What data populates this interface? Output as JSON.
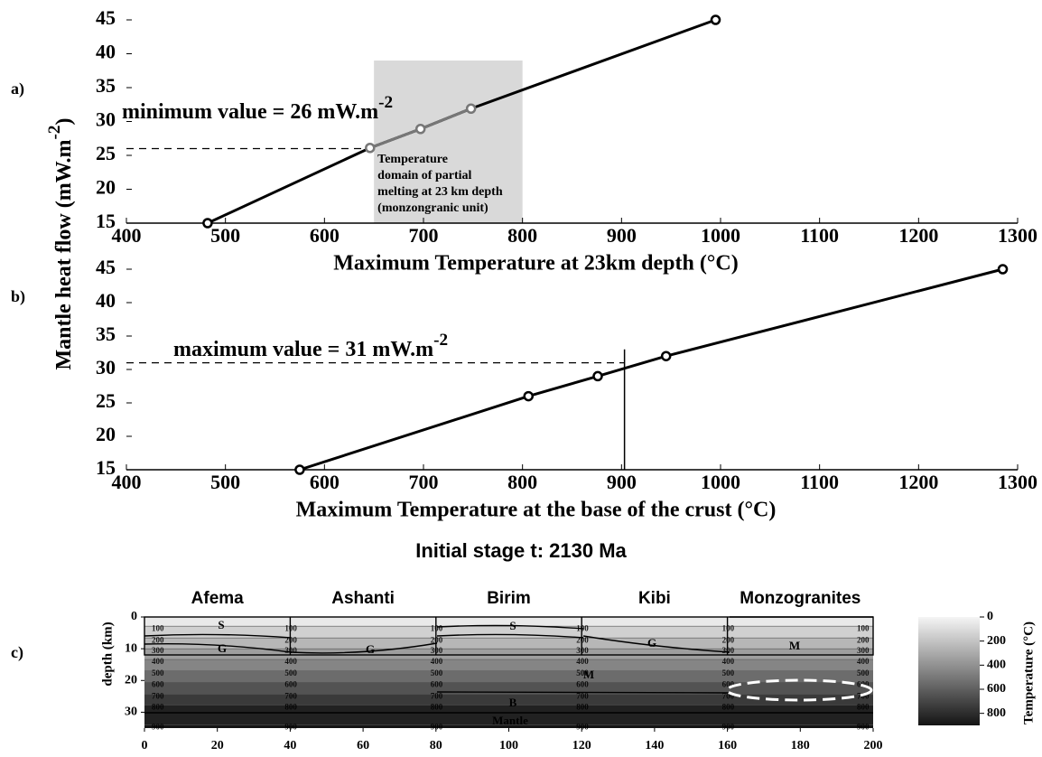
{
  "chart_data": [
    {
      "type": "line",
      "label": "a)",
      "ylabel": {
        "text": "Mantle heat flow (mW.m",
        "sup": "-2",
        "after": ")"
      },
      "xlabel": "Maximum Temperature at 23km depth (°C)",
      "x": [
        482,
        646,
        697,
        748,
        995
      ],
      "values": [
        15,
        26.1,
        28.9,
        31.9,
        45
      ],
      "color": "#000000",
      "point_colors": [
        "#000000",
        "#777777",
        "#777777",
        "#777777",
        "#000000"
      ],
      "xlim": [
        400,
        1300
      ],
      "xticks": [
        400,
        500,
        600,
        700,
        800,
        900,
        1000,
        1100,
        1200,
        1300
      ],
      "ylim": [
        15,
        45
      ],
      "yticks": [
        15,
        20,
        25,
        30,
        35,
        40,
        45
      ],
      "annotation": {
        "text": "minimum value = 26 mW.m",
        "sup": "-2"
      },
      "hline": {
        "y": 26,
        "x": [
          400,
          646
        ]
      },
      "shaded": {
        "xlim": [
          650,
          800
        ],
        "ylim": [
          15,
          39
        ],
        "color": "#d9d9d9",
        "label": [
          "Temperature",
          "domain of partial",
          "melting at 23 km depth",
          "(monzongranic unit)"
        ]
      }
    },
    {
      "type": "line",
      "label": "b)",
      "xlabel": "Maximum Temperature at the base of the crust (°C)",
      "x": [
        575,
        806,
        876,
        945,
        1285
      ],
      "values": [
        15,
        26,
        29,
        32,
        45
      ],
      "color": "#000000",
      "point_colors": [
        "#000000",
        "#000000",
        "#000000",
        "#000000",
        "#000000"
      ],
      "xlim": [
        400,
        1300
      ],
      "xticks": [
        400,
        500,
        600,
        700,
        800,
        900,
        1000,
        1100,
        1200,
        1300
      ],
      "ylim": [
        15,
        45
      ],
      "yticks": [
        15,
        20,
        25,
        30,
        35,
        40,
        45
      ],
      "annotation": {
        "text": "maximum value = 31 mW.m",
        "sup": "-2"
      },
      "hline": {
        "y": 31,
        "x": [
          400,
          903
        ]
      },
      "vline": {
        "x": 903,
        "y": [
          15,
          33
        ]
      }
    },
    {
      "type": "section",
      "label": "c)",
      "title": "Initial stage t: 2130 Ma",
      "columns": [
        {
          "name": "Afema",
          "x": [
            0,
            40
          ]
        },
        {
          "name": "Ashanti",
          "x": [
            40,
            80
          ]
        },
        {
          "name": "Birim",
          "x": [
            80,
            120
          ]
        },
        {
          "name": "Kibi",
          "x": [
            120,
            160
          ]
        },
        {
          "name": "Monzogranites",
          "x": [
            160,
            200
          ]
        }
      ],
      "xlim": [
        0,
        200
      ],
      "xticks": [
        0,
        20,
        40,
        60,
        80,
        100,
        120,
        140,
        160,
        180,
        200
      ],
      "ylabel": "depth (km)",
      "ylim": [
        0,
        35
      ],
      "inverted": true,
      "yticks": [
        0,
        10,
        20,
        30
      ],
      "isotherms": {
        "values": [
          100,
          200,
          300,
          400,
          500,
          600,
          700,
          800,
          900
        ],
        "depths": [
          2.9,
          6.6,
          10,
          13.4,
          17,
          20.6,
          24.3,
          27.7,
          34
        ]
      },
      "isotherm_label_x": [
        0,
        40,
        80,
        120,
        160,
        200
      ],
      "unit_labels": [
        "S",
        "G",
        "G",
        "S",
        "G",
        "M",
        "M",
        "B",
        "Mantle"
      ],
      "colorbar": {
        "label": "Temperature (°C)",
        "clim": [
          0,
          900
        ],
        "ticks": [
          0,
          200,
          400,
          600,
          800
        ]
      }
    }
  ]
}
